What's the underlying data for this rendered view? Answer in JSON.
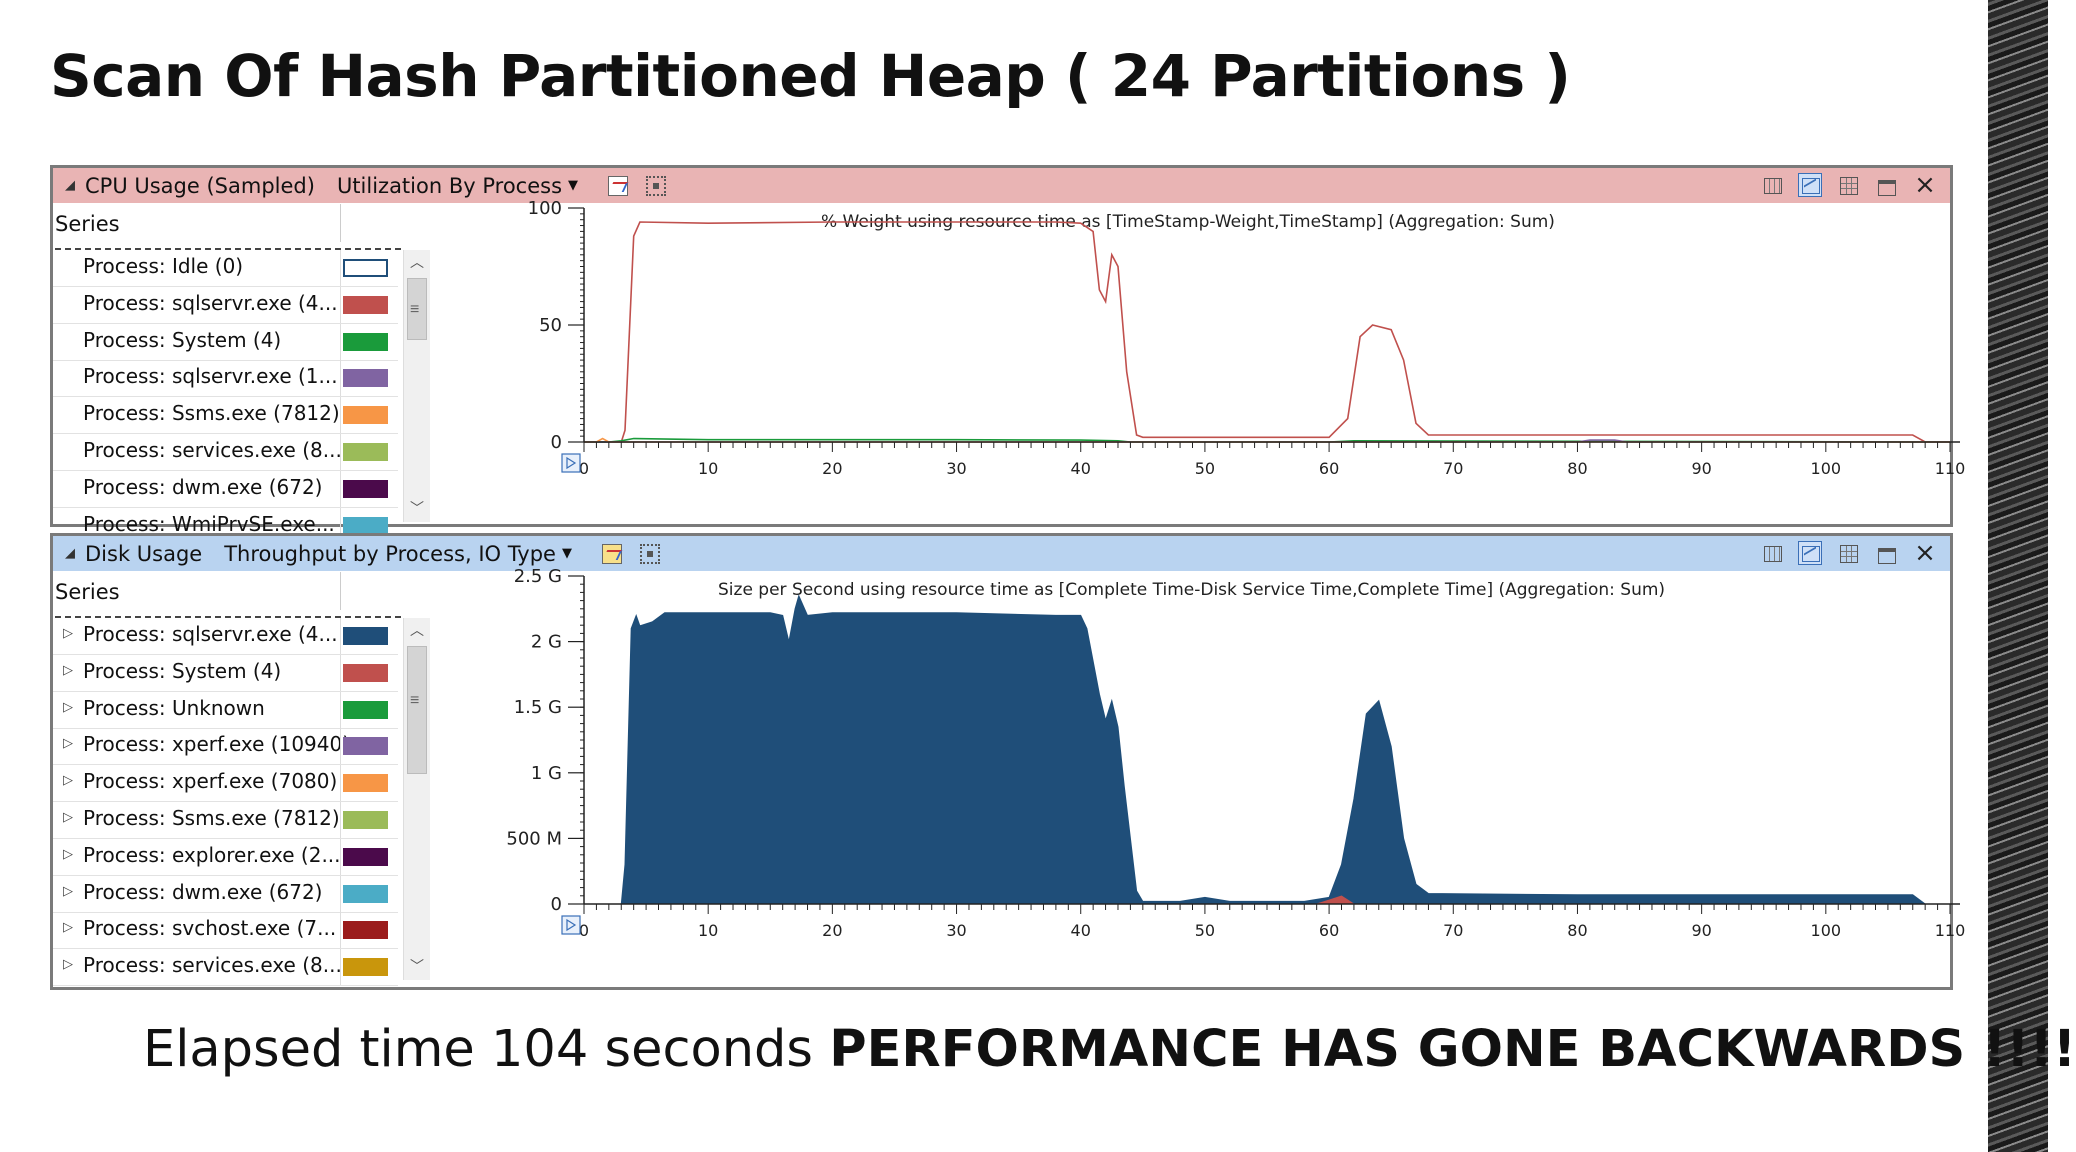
{
  "slide": {
    "title": "Scan Of Hash Partitioned Heap ( 24 Partitions )",
    "footer_normal": "Elapsed time 104 seconds ",
    "footer_bold": "PERFORMANCE HAS GONE BACKWARDS !!!!"
  },
  "cpu_panel": {
    "name": "CPU Usage (Sampled)",
    "view": "Utilization By Process",
    "header_color": "#e9b4b4",
    "series_heading": "Series",
    "legend": [
      {
        "label": "Process: Idle (0)",
        "color": "#ffffff"
      },
      {
        "label": "Process: sqlservr.exe (4...",
        "color": "#c0504d"
      },
      {
        "label": "Process: System (4)",
        "color": "#1a9b3b"
      },
      {
        "label": "Process: sqlservr.exe (1...",
        "color": "#8064a2"
      },
      {
        "label": "Process: Ssms.exe (7812)",
        "color": "#f79646"
      },
      {
        "label": "Process: services.exe (8...",
        "color": "#9bbb59"
      },
      {
        "label": "Process: dwm.exe (672)",
        "color": "#4b0a4b"
      },
      {
        "label": "Process: WmiPrvSE.exe...",
        "color": "#4bacc6"
      }
    ]
  },
  "disk_panel": {
    "name": "Disk Usage",
    "view": "Throughput by Process, IO Type",
    "header_color": "#b9d3f0",
    "series_heading": "Series",
    "legend": [
      {
        "label": "Process: sqlservr.exe (4...",
        "color": "#1f4e79"
      },
      {
        "label": "Process: System (4)",
        "color": "#c0504d"
      },
      {
        "label": "Process: Unknown",
        "color": "#1a9b3b"
      },
      {
        "label": "Process: xperf.exe (10940)",
        "color": "#8064a2"
      },
      {
        "label": "Process: xperf.exe (7080)",
        "color": "#f79646"
      },
      {
        "label": "Process: Ssms.exe (7812)",
        "color": "#9bbb59"
      },
      {
        "label": "Process: explorer.exe (2...",
        "color": "#4b0a4b"
      },
      {
        "label": "Process: dwm.exe (672)",
        "color": "#4bacc6"
      },
      {
        "label": "Process: svchost.exe (7...",
        "color": "#9b1c1c"
      },
      {
        "label": "Process: services.exe (8...",
        "color": "#c9960c"
      }
    ]
  },
  "chart_data": [
    {
      "type": "line",
      "title": "% Weight using resource time as [TimeStamp-Weight,TimeStamp] (Aggregation: Sum)",
      "xlim": [
        0,
        110
      ],
      "ylim": [
        0,
        100
      ],
      "x_ticks": [
        "0",
        "10",
        "20",
        "30",
        "40",
        "50",
        "60",
        "70",
        "80",
        "90",
        "100",
        "110"
      ],
      "y_ticks": [
        "0",
        "50",
        "100"
      ],
      "series": [
        {
          "name": "Process: sqlservr.exe (4...",
          "color": "#c0504d",
          "x": [
            0,
            2,
            3,
            3.3,
            4,
            4.5,
            10,
            20,
            30,
            38,
            40,
            41,
            41.5,
            42,
            42.5,
            43,
            43.7,
            44.5,
            45,
            60,
            61.5,
            62.5,
            63.5,
            65,
            66,
            67,
            68,
            80,
            100,
            107,
            108,
            110
          ],
          "y": [
            0,
            0,
            0,
            5,
            88,
            94,
            93.5,
            94,
            94,
            94,
            93.5,
            90,
            65,
            60,
            80,
            75,
            30,
            3,
            2,
            2,
            10,
            45,
            50,
            48,
            35,
            8,
            3,
            3,
            3,
            3,
            0,
            0
          ]
        },
        {
          "name": "Process: System (4)",
          "color": "#1a9b3b",
          "x": [
            0,
            2,
            3,
            4,
            10,
            20,
            30,
            40,
            43,
            44,
            60,
            62,
            110
          ],
          "y": [
            0,
            0,
            0.5,
            1.5,
            1,
            1,
            1,
            0.8,
            0.5,
            0,
            0,
            0.5,
            0
          ]
        },
        {
          "name": "Process: sqlservr.exe (1...",
          "color": "#8064a2",
          "x": [
            0,
            80,
            81,
            83,
            84,
            110
          ],
          "y": [
            0,
            0,
            0.8,
            0.8,
            0,
            0
          ]
        },
        {
          "name": "Process: Ssms.exe (7812)",
          "color": "#f79646",
          "x": [
            0,
            1,
            1.5,
            2,
            110
          ],
          "y": [
            0,
            0,
            1.5,
            0,
            0
          ]
        }
      ]
    },
    {
      "type": "area",
      "title": "Size per Second using resource time as [Complete Time-Disk Service Time,Complete Time] (Aggregation: Sum)",
      "xlim": [
        0,
        110
      ],
      "ylim": [
        0,
        2.5
      ],
      "x_ticks": [
        "0",
        "10",
        "20",
        "30",
        "40",
        "50",
        "60",
        "70",
        "80",
        "90",
        "100",
        "110"
      ],
      "y_ticks": [
        "0",
        "500 M",
        "1 G",
        "1.5 G",
        "2 G",
        "2.5 G"
      ],
      "series": [
        {
          "name": "Process: sqlservr.exe (4...",
          "color": "#1f4e79",
          "x": [
            0,
            3,
            3.3,
            3.8,
            4.2,
            4.5,
            5.5,
            6.5,
            10,
            15,
            16,
            16.5,
            17,
            17.3,
            18,
            20,
            30,
            38,
            40,
            40.5,
            41.5,
            42,
            42.5,
            43,
            43.5,
            44.5,
            45,
            48,
            50,
            52,
            58,
            60,
            61,
            62,
            63,
            64,
            65,
            66,
            67,
            68,
            80,
            100,
            107,
            108,
            110
          ],
          "y": [
            0,
            0,
            0.3,
            2.1,
            2.2,
            2.12,
            2.15,
            2.22,
            2.22,
            2.22,
            2.2,
            2.0,
            2.25,
            2.35,
            2.2,
            2.22,
            2.22,
            2.2,
            2.2,
            2.1,
            1.6,
            1.4,
            1.55,
            1.35,
            0.9,
            0.1,
            0.02,
            0.02,
            0.05,
            0.02,
            0.02,
            0.05,
            0.3,
            0.8,
            1.45,
            1.55,
            1.2,
            0.5,
            0.15,
            0.08,
            0.07,
            0.07,
            0.07,
            0,
            0
          ]
        },
        {
          "name": "Process: System (4)",
          "color": "#c0504d",
          "x": [
            0,
            59,
            60,
            61,
            62,
            110
          ],
          "y": [
            0,
            0,
            0.03,
            0.06,
            0,
            0
          ]
        }
      ]
    }
  ]
}
